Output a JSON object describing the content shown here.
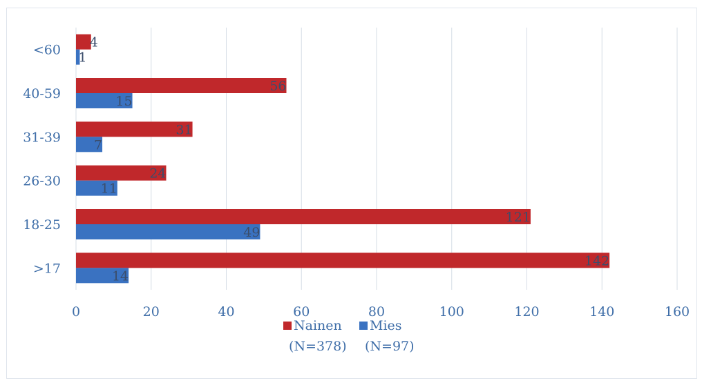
{
  "chart_data": {
    "type": "bar",
    "orientation": "horizontal",
    "categories": [
      ">17",
      "18-25",
      "26-30",
      "31-39",
      "40-59",
      "<60"
    ],
    "series": [
      {
        "name": "Nainen",
        "name_line2": "(N=378)",
        "color": "#c0282b",
        "values": [
          142,
          121,
          24,
          31,
          56,
          4
        ]
      },
      {
        "name": "Mies",
        "name_line2": "(N=97)",
        "color": "#3a72c1",
        "values": [
          14,
          49,
          11,
          7,
          15,
          1
        ]
      }
    ],
    "xlim": [
      0,
      160
    ],
    "xticks": [
      0,
      20,
      40,
      60,
      80,
      100,
      120,
      140,
      160
    ],
    "grid": "vertical",
    "legend_position": "bottom",
    "data_labels": true
  }
}
